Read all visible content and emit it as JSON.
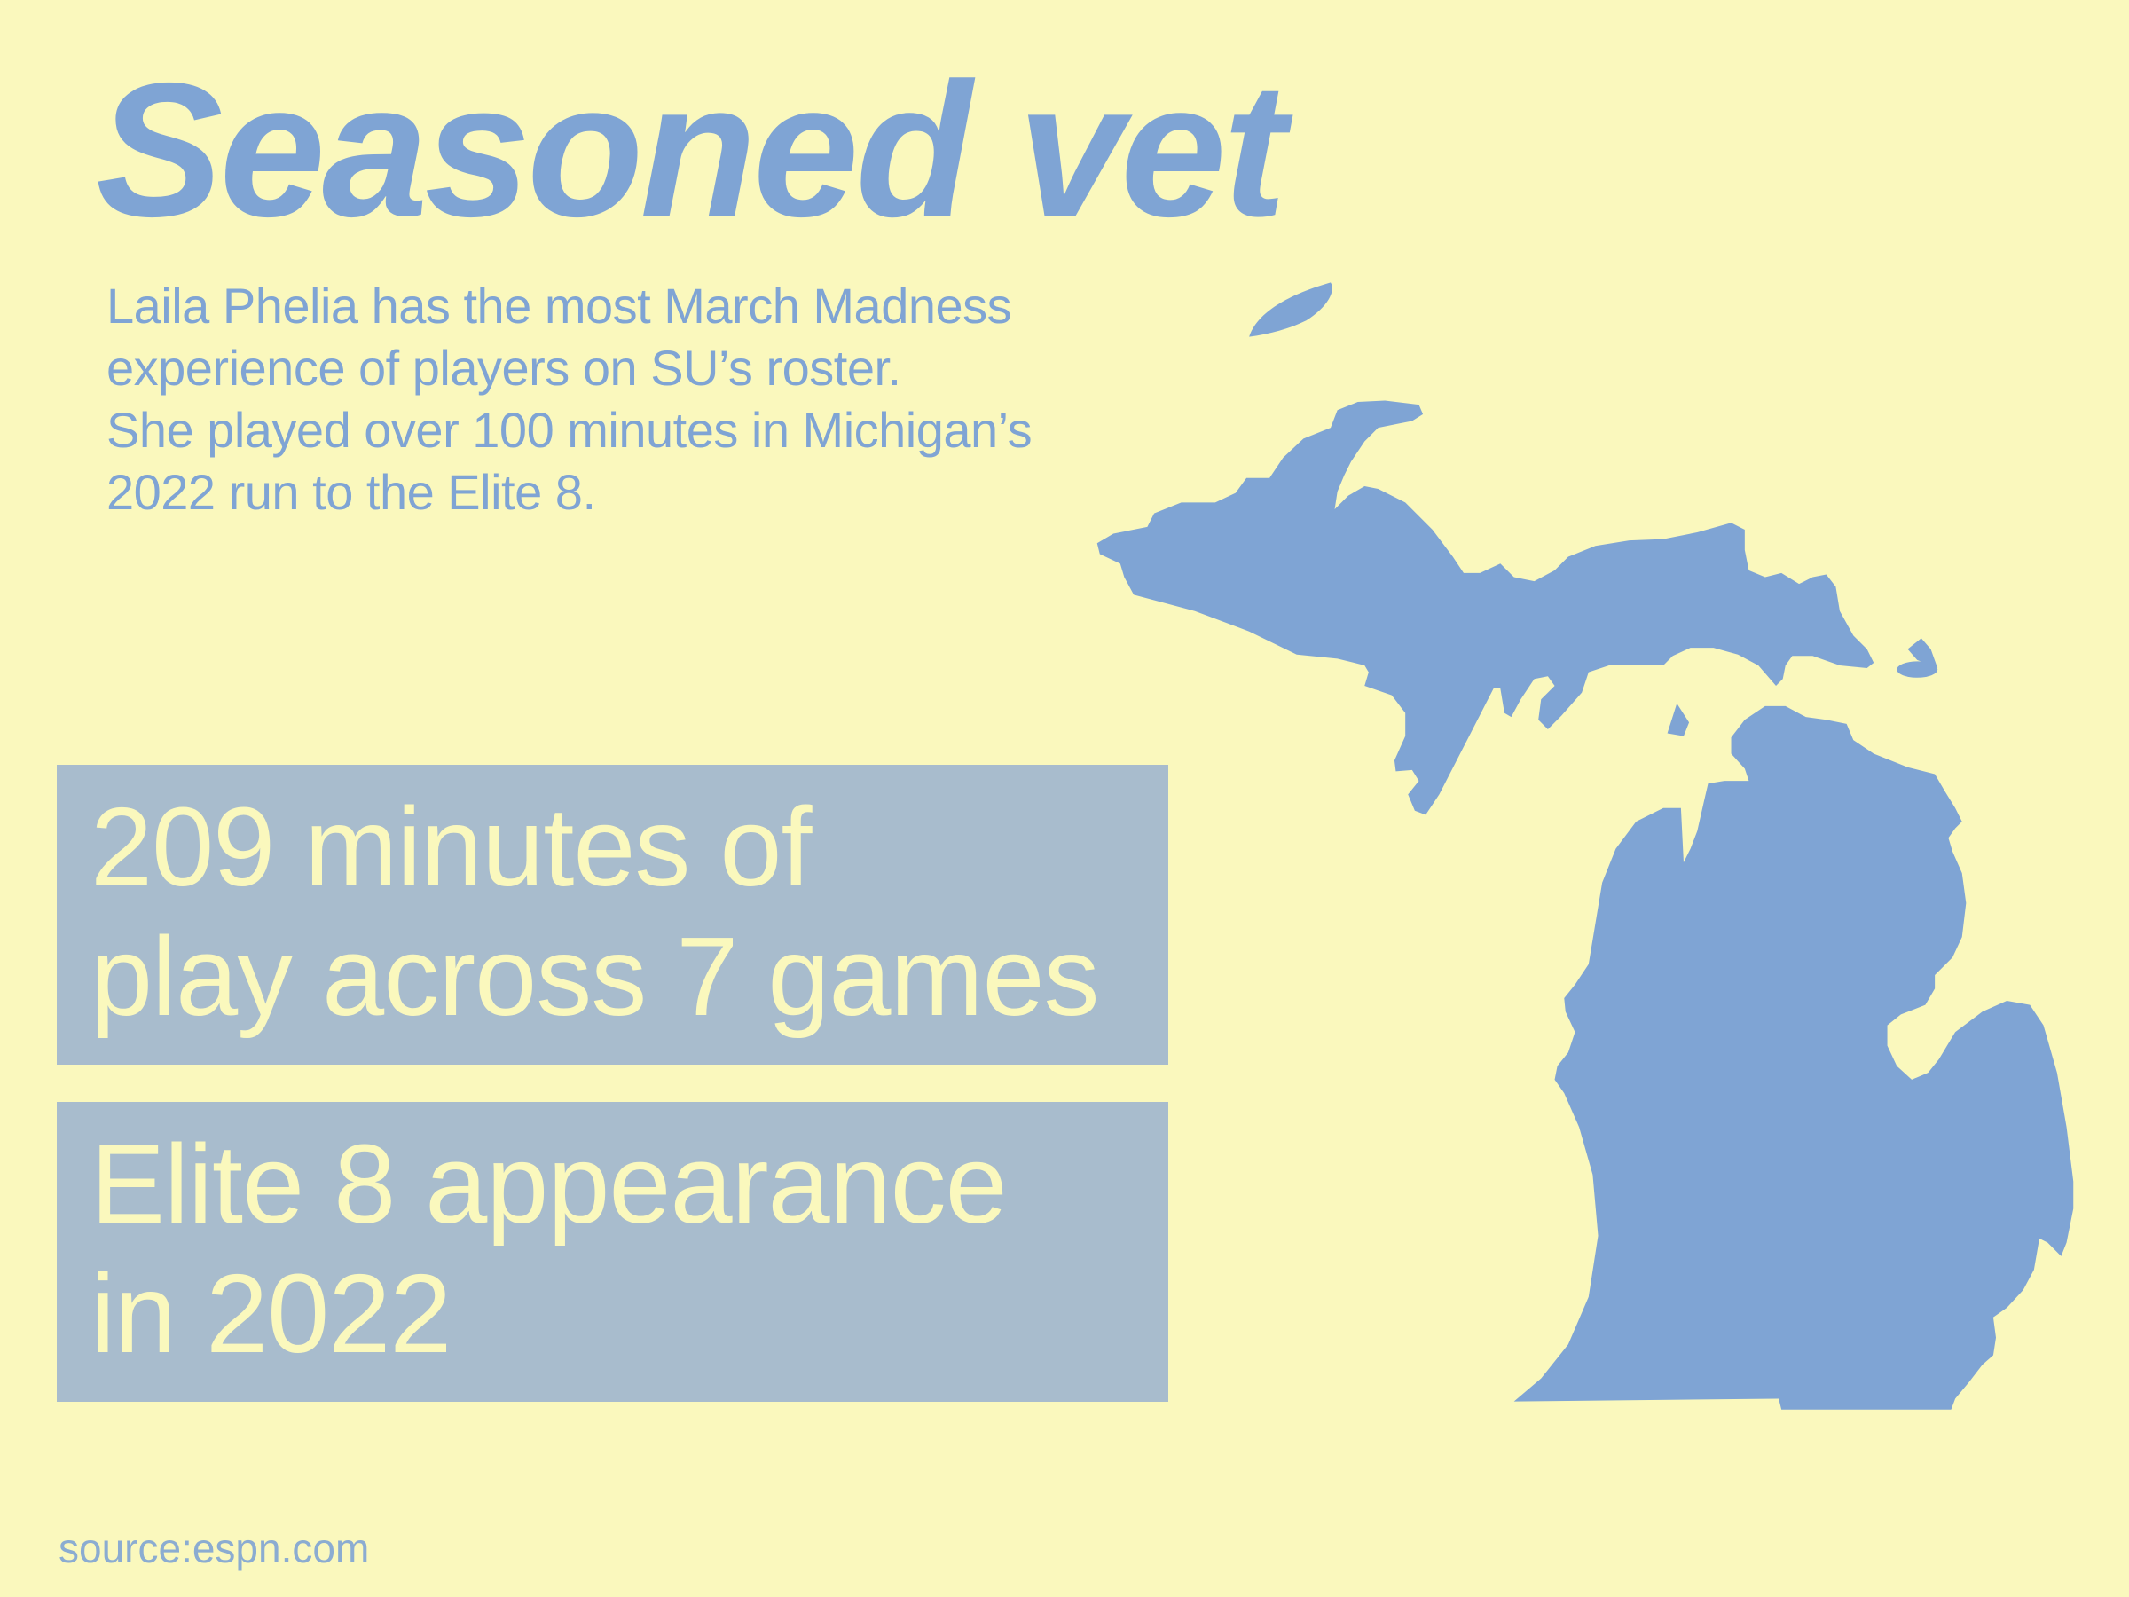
{
  "title": "Seasoned vet",
  "description": [
    "Laila Phelia has the most March Madness",
    "experience of players on SU’s roster.",
    "She played over 100 minutes in Michigan’s",
    "2022 run to the Elite 8."
  ],
  "stats": [
    {
      "line1": "209 minutes of",
      "line2": "play across 7 games"
    },
    {
      "line1": "Elite 8 appearance",
      "line2": "in 2022"
    }
  ],
  "source": "source:espn.com",
  "map": {
    "region": "Michigan",
    "icon": "michigan-map-icon"
  },
  "colors": {
    "background": "#faf8bd",
    "accent": "#7fa4d4",
    "box": "#a8bccd"
  }
}
